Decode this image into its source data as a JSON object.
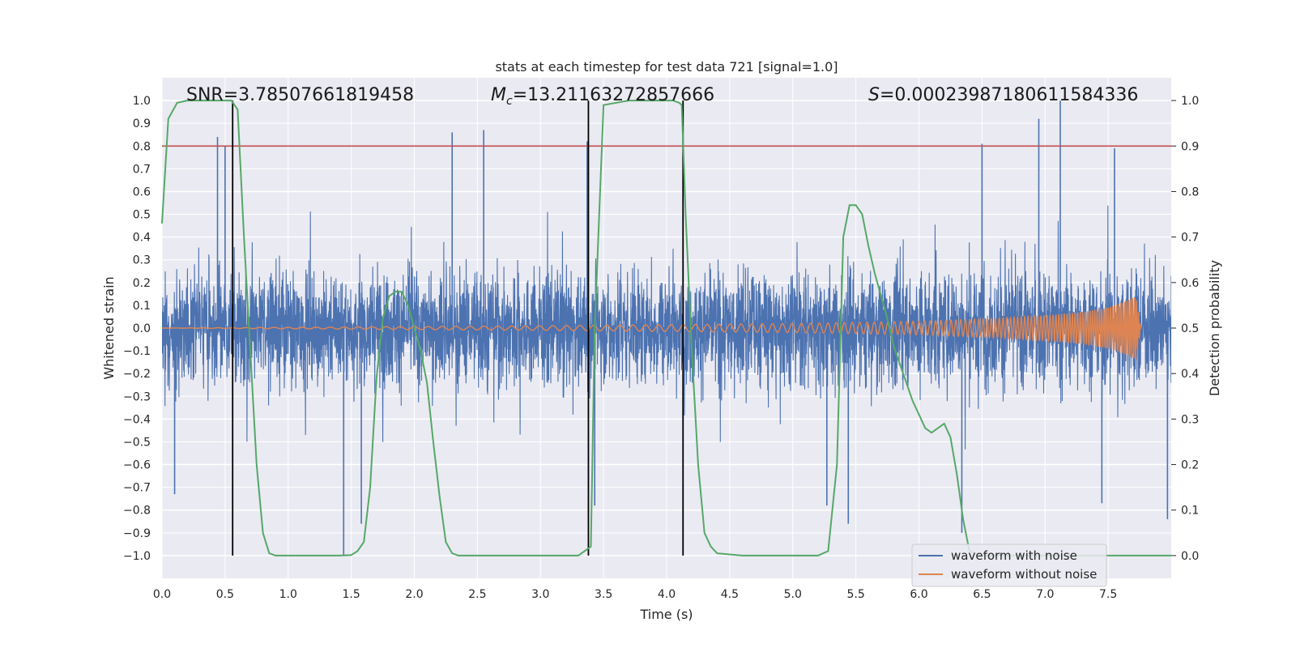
{
  "chart_data": {
    "type": "line",
    "title": "stats at each timestep for test data 721 [signal=1.0]",
    "xlabel": "Time (s)",
    "ylabel": "Whitened strain",
    "ylabel_right": "Detection probability",
    "xlim": [
      0.0,
      8.0
    ],
    "ylim": [
      -1.1,
      1.1
    ],
    "ylim_right": [
      -0.05,
      1.05
    ],
    "x_ticks": [
      "0.0",
      "0.5",
      "1.0",
      "1.5",
      "2.0",
      "2.5",
      "3.0",
      "3.5",
      "4.0",
      "4.5",
      "5.0",
      "5.5",
      "6.0",
      "6.5",
      "7.0",
      "7.5"
    ],
    "y_ticks": [
      "1.0",
      "0.9",
      "0.8",
      "0.7",
      "0.6",
      "0.5",
      "0.4",
      "0.3",
      "0.2",
      "0.1",
      "0.0",
      "−0.1",
      "−0.2",
      "−0.3",
      "−0.4",
      "−0.5",
      "−0.6",
      "−0.7",
      "−0.8",
      "−0.9",
      "−1.0"
    ],
    "y_right_ticks": [
      "1.0",
      "0.9",
      "0.8",
      "0.7",
      "0.6",
      "0.5",
      "0.4",
      "0.3",
      "0.2",
      "0.1",
      "0.0"
    ],
    "annotations": {
      "snr": "SNR=3.78507661819458",
      "mc_symbol": "M",
      "mc_sub": "c",
      "mc_value": "=13.21163272857666",
      "s_symbol": "S",
      "s_value": "=0.00023987180611584336"
    },
    "threshold_right": 0.9,
    "vertical_markers": [
      0.56,
      3.38,
      4.13
    ],
    "series": [
      {
        "name": "waveform with noise",
        "color": "#4c72b0",
        "description": "dense noisy strain, amplitude roughly within ±0.5 with spikes to ±1.0",
        "spikes": [
          [
            0.44,
            0.84
          ],
          [
            0.5,
            0.8
          ],
          [
            2.3,
            0.86
          ],
          [
            2.55,
            0.87
          ],
          [
            3.37,
            0.82
          ],
          [
            6.95,
            0.92
          ],
          [
            7.12,
            1.0
          ],
          [
            6.5,
            0.81
          ],
          [
            7.55,
            0.79
          ],
          [
            0.1,
            -0.73
          ],
          [
            1.44,
            -1.0
          ],
          [
            1.58,
            -0.86
          ],
          [
            3.43,
            -0.78
          ],
          [
            5.27,
            -0.78
          ],
          [
            5.44,
            -0.86
          ],
          [
            6.34,
            -0.9
          ],
          [
            7.45,
            -0.77
          ],
          [
            7.97,
            -0.84
          ]
        ]
      },
      {
        "name": "waveform without noise",
        "color": "#dd8452",
        "description": "chirp signal growing toward merger",
        "points": [
          [
            0.0,
            0.0
          ],
          [
            3.0,
            0.01
          ],
          [
            5.0,
            0.02
          ],
          [
            6.0,
            0.03
          ],
          [
            6.5,
            0.04
          ],
          [
            7.0,
            0.055
          ],
          [
            7.3,
            0.07
          ],
          [
            7.5,
            0.09
          ],
          [
            7.65,
            0.12
          ],
          [
            7.72,
            0.14
          ],
          [
            7.76,
            0.0
          ]
        ]
      },
      {
        "name": "detection probability",
        "color": "#55a868",
        "axis": "right",
        "x": [
          0.0,
          0.05,
          0.12,
          0.2,
          0.3,
          0.4,
          0.5,
          0.55,
          0.6,
          0.65,
          0.7,
          0.75,
          0.8,
          0.85,
          0.9,
          1.0,
          1.2,
          1.4,
          1.5,
          1.55,
          1.6,
          1.65,
          1.7,
          1.75,
          1.8,
          1.85,
          1.9,
          1.95,
          2.0,
          2.05,
          2.1,
          2.15,
          2.2,
          2.25,
          2.3,
          2.35,
          2.4,
          2.6,
          3.0,
          3.3,
          3.35,
          3.4,
          3.43,
          3.5,
          3.7,
          3.9,
          4.0,
          4.05,
          4.1,
          4.12,
          4.15,
          4.2,
          4.25,
          4.3,
          4.35,
          4.4,
          4.6,
          5.0,
          5.2,
          5.28,
          5.35,
          5.4,
          5.45,
          5.5,
          5.55,
          5.6,
          5.65,
          5.7,
          5.75,
          5.8,
          5.85,
          5.9,
          5.95,
          6.0,
          6.05,
          6.1,
          6.15,
          6.2,
          6.25,
          6.3,
          6.35,
          6.4,
          6.5,
          7.0,
          7.5,
          8.0
        ],
        "y": [
          0.73,
          0.96,
          0.995,
          1.0,
          1.0,
          1.0,
          1.0,
          1.0,
          0.98,
          0.7,
          0.45,
          0.2,
          0.05,
          0.005,
          0.0,
          0.0,
          0.0,
          0.0,
          0.001,
          0.01,
          0.03,
          0.15,
          0.39,
          0.52,
          0.57,
          0.58,
          0.58,
          0.55,
          0.5,
          0.45,
          0.38,
          0.25,
          0.13,
          0.03,
          0.005,
          0.0,
          0.0,
          0.0,
          0.0,
          0.0,
          0.01,
          0.02,
          0.5,
          0.99,
          1.0,
          1.0,
          1.0,
          1.0,
          0.995,
          0.99,
          0.75,
          0.45,
          0.2,
          0.05,
          0.02,
          0.005,
          0.0,
          0.0,
          0.0,
          0.01,
          0.2,
          0.7,
          0.77,
          0.77,
          0.75,
          0.68,
          0.62,
          0.57,
          0.52,
          0.46,
          0.42,
          0.38,
          0.34,
          0.31,
          0.28,
          0.27,
          0.28,
          0.29,
          0.26,
          0.18,
          0.08,
          0.01,
          0.0,
          0.0,
          0.0,
          0.0
        ]
      }
    ],
    "legend": {
      "position": "lower-right",
      "entries": [
        "waveform with noise",
        "waveform without noise"
      ]
    },
    "colors": {
      "background": "#eaeaf2",
      "grid": "#ffffff",
      "threshold": "#c44e52",
      "marker": "#000000"
    }
  }
}
